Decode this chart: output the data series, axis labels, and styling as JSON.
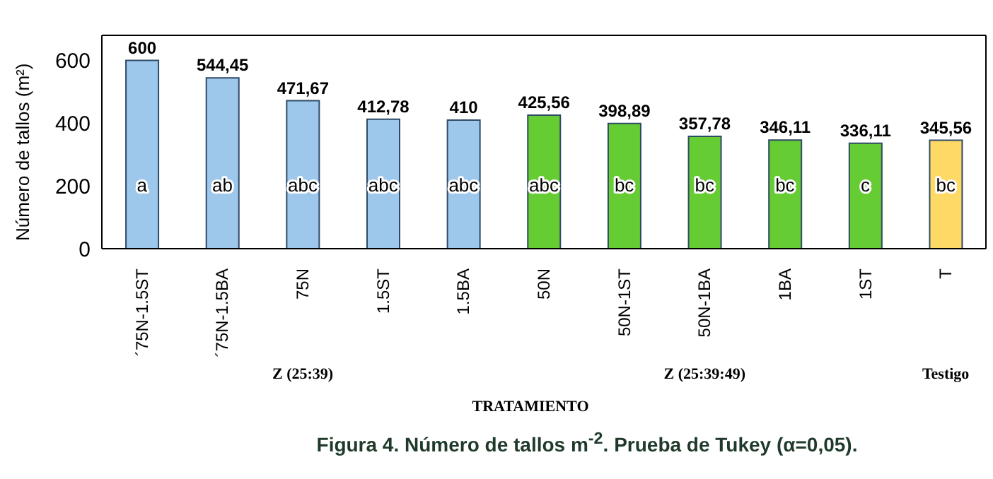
{
  "chart_data": {
    "type": "bar",
    "xlabel": "TRATAMIENTO",
    "ylabel": "Número de tallos (m²)",
    "categories": [
      "´75N-1.5ST",
      "´75N-1.5BA",
      "75N",
      "1.5ST",
      "1.5BA",
      "50N",
      "50N-1ST",
      "50N-1BA",
      "1BA",
      "1ST",
      "T"
    ],
    "values": [
      600,
      544.45,
      471.67,
      412.78,
      410,
      425.56,
      398.89,
      357.78,
      346.11,
      336.11,
      345.56
    ],
    "value_labels": [
      "600",
      "544,45",
      "471,67",
      "412,78",
      "410",
      "425,56",
      "398,89",
      "357,78",
      "346,11",
      "336,11",
      "345,56"
    ],
    "colors": [
      "#9dc8ec",
      "#9dc8ec",
      "#9dc8ec",
      "#9dc8ec",
      "#9dc8ec",
      "#66cc33",
      "#66cc33",
      "#66cc33",
      "#66cc33",
      "#66cc33",
      "#ffd966"
    ],
    "ylim": [
      0,
      680
    ],
    "yticks": [
      0,
      200,
      400,
      600
    ],
    "annotations": [
      "a",
      "ab",
      "abc",
      "abc",
      "abc",
      "abc",
      "bc",
      "bc",
      "bc",
      "c",
      "bc",
      "Z (25:39)",
      "Z (25:39:49)",
      "Testigo",
      "Figura 4. Número de tallos m$^{-2}$. Prueba de Tukey (α=0,05)."
    ]
  }
}
